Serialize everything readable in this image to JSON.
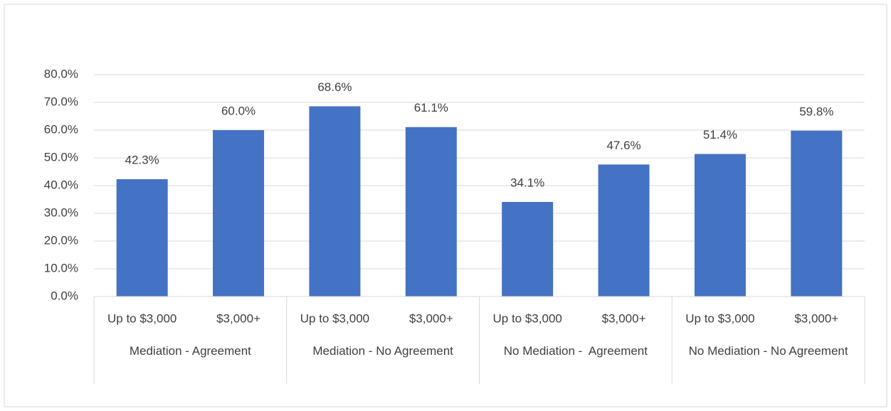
{
  "chart_data": {
    "type": "bar",
    "categories": [
      "Up to $3,000",
      "$3,000+",
      "Up to $3,000",
      "$3,000+",
      "Up to $3,000",
      "$3,000+",
      "Up to $3,000",
      "$3,000+"
    ],
    "groups": [
      "Mediation - Agreement",
      "Mediation - No Agreement",
      "No Mediation -  Agreement",
      "No Mediation - No Agreement"
    ],
    "values": [
      42.3,
      60.0,
      68.6,
      61.1,
      34.1,
      47.6,
      51.4,
      59.8
    ],
    "value_labels": [
      "42.3%",
      "60.0%",
      "68.6%",
      "61.1%",
      "34.1%",
      "47.6%",
      "51.4%",
      "59.8%"
    ],
    "color": "#4472c4",
    "ylim": [
      0,
      80
    ],
    "yticks": [
      {
        "value": 0,
        "label": "0.0%"
      },
      {
        "value": 10,
        "label": "10.0%"
      },
      {
        "value": 20,
        "label": "20.0%"
      },
      {
        "value": 30,
        "label": "30.0%"
      },
      {
        "value": 40,
        "label": "40.0%"
      },
      {
        "value": 50,
        "label": "50.0%"
      },
      {
        "value": 60,
        "label": "60.0%"
      },
      {
        "value": 70,
        "label": "70.0%"
      },
      {
        "value": 80,
        "label": "80.0%"
      }
    ],
    "grid": true
  }
}
